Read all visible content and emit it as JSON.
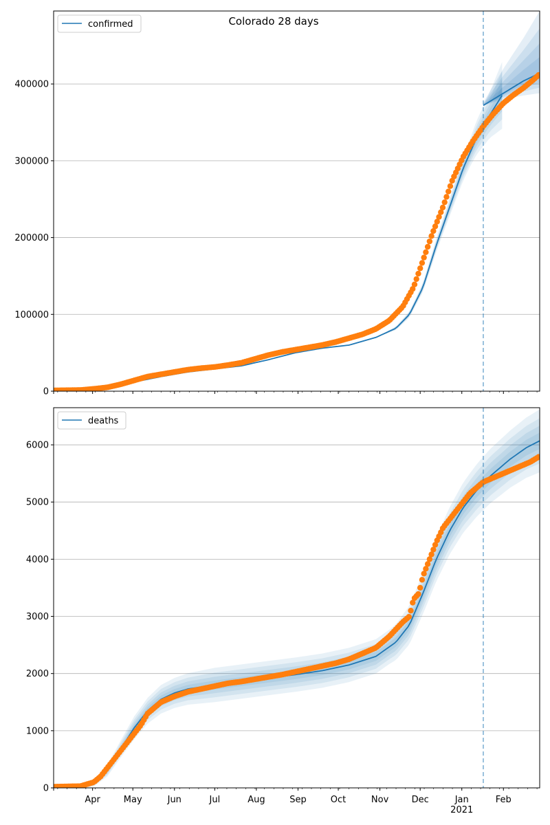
{
  "chart_data": [
    {
      "type": "line",
      "id": "confirmed",
      "title": "Colorado 28 days",
      "legend": [
        "confirmed"
      ],
      "legend_position": "upper-left",
      "grid": "y",
      "ylim": [
        0,
        495000
      ],
      "yticks": [
        0,
        100000,
        200000,
        300000,
        400000
      ],
      "ytick_labels": [
        "0",
        "100000",
        "200000",
        "300000",
        "400000"
      ],
      "cutoff_day": 320,
      "model": [
        [
          0,
          0
        ],
        [
          20,
          200
        ],
        [
          40,
          3000
        ],
        [
          60,
          12000
        ],
        [
          80,
          19000
        ],
        [
          100,
          25000
        ],
        [
          120,
          29000
        ],
        [
          140,
          33000
        ],
        [
          160,
          41000
        ],
        [
          180,
          50000
        ],
        [
          200,
          56000
        ],
        [
          220,
          60000
        ],
        [
          240,
          70000
        ],
        [
          255,
          82000
        ],
        [
          265,
          100000
        ],
        [
          275,
          135000
        ],
        [
          285,
          190000
        ],
        [
          295,
          240000
        ],
        [
          305,
          290000
        ],
        [
          315,
          330000
        ],
        [
          325,
          360000
        ],
        [
          335,
          388000
        ]
      ],
      "band_halfwidth": [
        [
          0,
          0
        ],
        [
          240,
          0
        ],
        [
          270,
          5000
        ],
        [
          290,
          10000
        ],
        [
          310,
          18000
        ],
        [
          325,
          30000
        ],
        [
          335,
          45000
        ]
      ],
      "forecast_median": [
        [
          320,
          372000
        ],
        [
          335,
          388000
        ],
        [
          350,
          404000
        ],
        [
          362,
          414000
        ]
      ],
      "forecast_upper": [
        [
          320,
          376000
        ],
        [
          335,
          420000
        ],
        [
          350,
          460000
        ],
        [
          362,
          495000
        ]
      ],
      "forecast_lower": [
        [
          320,
          372000
        ],
        [
          335,
          380000
        ],
        [
          350,
          385000
        ],
        [
          362,
          388000
        ]
      ],
      "observed": [
        [
          0,
          1000
        ],
        [
          20,
          1500
        ],
        [
          30,
          3000
        ],
        [
          40,
          5000
        ],
        [
          50,
          9000
        ],
        [
          60,
          14000
        ],
        [
          70,
          19000
        ],
        [
          80,
          22000
        ],
        [
          90,
          25000
        ],
        [
          100,
          28000
        ],
        [
          110,
          30000
        ],
        [
          120,
          31500
        ],
        [
          130,
          34000
        ],
        [
          140,
          37000
        ],
        [
          150,
          42000
        ],
        [
          160,
          47000
        ],
        [
          170,
          51000
        ],
        [
          180,
          54000
        ],
        [
          190,
          57000
        ],
        [
          200,
          60000
        ],
        [
          210,
          64000
        ],
        [
          220,
          69000
        ],
        [
          230,
          74000
        ],
        [
          240,
          81000
        ],
        [
          250,
          92000
        ],
        [
          260,
          110000
        ],
        [
          268,
          135000
        ],
        [
          275,
          170000
        ],
        [
          282,
          205000
        ],
        [
          290,
          240000
        ],
        [
          297,
          275000
        ],
        [
          305,
          305000
        ],
        [
          312,
          325000
        ],
        [
          320,
          345000
        ],
        [
          327,
          360000
        ],
        [
          335,
          375000
        ],
        [
          342,
          385000
        ],
        [
          350,
          395000
        ],
        [
          357,
          405000
        ],
        [
          362,
          413000
        ]
      ]
    },
    {
      "type": "line",
      "id": "deaths",
      "title": "",
      "legend": [
        "deaths"
      ],
      "legend_position": "upper-left",
      "grid": "y",
      "ylim": [
        0,
        6650
      ],
      "yticks": [
        0,
        1000,
        2000,
        3000,
        4000,
        5000,
        6000
      ],
      "ytick_labels": [
        "0",
        "1000",
        "2000",
        "3000",
        "4000",
        "5000",
        "6000"
      ],
      "cutoff_day": 320,
      "xtick_labels": [
        "Apr",
        "May",
        "Jun",
        "Jul",
        "Aug",
        "Sep",
        "Oct",
        "Nov",
        "Dec",
        "Jan\n2021",
        "Feb"
      ],
      "xtick_days": [
        29,
        59,
        90,
        120,
        151,
        182,
        212,
        243,
        273,
        304,
        335
      ],
      "model": [
        [
          0,
          0
        ],
        [
          20,
          10
        ],
        [
          30,
          80
        ],
        [
          40,
          300
        ],
        [
          50,
          680
        ],
        [
          60,
          1050
        ],
        [
          70,
          1350
        ],
        [
          80,
          1550
        ],
        [
          90,
          1660
        ],
        [
          100,
          1730
        ],
        [
          120,
          1800
        ],
        [
          140,
          1860
        ],
        [
          160,
          1920
        ],
        [
          180,
          1980
        ],
        [
          200,
          2050
        ],
        [
          220,
          2150
        ],
        [
          240,
          2300
        ],
        [
          255,
          2550
        ],
        [
          265,
          2850
        ],
        [
          275,
          3400
        ],
        [
          285,
          4000
        ],
        [
          295,
          4500
        ],
        [
          305,
          4900
        ],
        [
          315,
          5200
        ],
        [
          325,
          5450
        ],
        [
          340,
          5750
        ],
        [
          352,
          5950
        ],
        [
          362,
          6070
        ]
      ],
      "band_halfwidth": [
        [
          0,
          0
        ],
        [
          20,
          10
        ],
        [
          40,
          100
        ],
        [
          60,
          200
        ],
        [
          80,
          250
        ],
        [
          120,
          300
        ],
        [
          200,
          300
        ],
        [
          250,
          300
        ],
        [
          270,
          350
        ],
        [
          290,
          400
        ],
        [
          310,
          450
        ],
        [
          340,
          500
        ],
        [
          362,
          550
        ]
      ],
      "observed": [
        [
          0,
          20
        ],
        [
          20,
          30
        ],
        [
          30,
          100
        ],
        [
          35,
          200
        ],
        [
          40,
          350
        ],
        [
          45,
          500
        ],
        [
          50,
          650
        ],
        [
          55,
          800
        ],
        [
          60,
          950
        ],
        [
          65,
          1100
        ],
        [
          70,
          1300
        ],
        [
          75,
          1400
        ],
        [
          80,
          1500
        ],
        [
          90,
          1600
        ],
        [
          100,
          1680
        ],
        [
          110,
          1730
        ],
        [
          120,
          1780
        ],
        [
          130,
          1830
        ],
        [
          140,
          1860
        ],
        [
          150,
          1900
        ],
        [
          160,
          1940
        ],
        [
          170,
          1980
        ],
        [
          180,
          2030
        ],
        [
          190,
          2080
        ],
        [
          200,
          2130
        ],
        [
          210,
          2180
        ],
        [
          220,
          2250
        ],
        [
          230,
          2350
        ],
        [
          240,
          2450
        ],
        [
          250,
          2650
        ],
        [
          260,
          2900
        ],
        [
          265,
          3000
        ],
        [
          268,
          3300
        ],
        [
          272,
          3400
        ],
        [
          275,
          3700
        ],
        [
          280,
          4000
        ],
        [
          285,
          4300
        ],
        [
          290,
          4550
        ],
        [
          295,
          4700
        ],
        [
          300,
          4850
        ],
        [
          305,
          5000
        ],
        [
          310,
          5150
        ],
        [
          315,
          5250
        ],
        [
          320,
          5350
        ],
        [
          325,
          5400
        ],
        [
          330,
          5450
        ],
        [
          335,
          5500
        ],
        [
          340,
          5550
        ],
        [
          345,
          5600
        ],
        [
          350,
          5650
        ],
        [
          355,
          5700
        ],
        [
          362,
          5800
        ]
      ]
    }
  ]
}
